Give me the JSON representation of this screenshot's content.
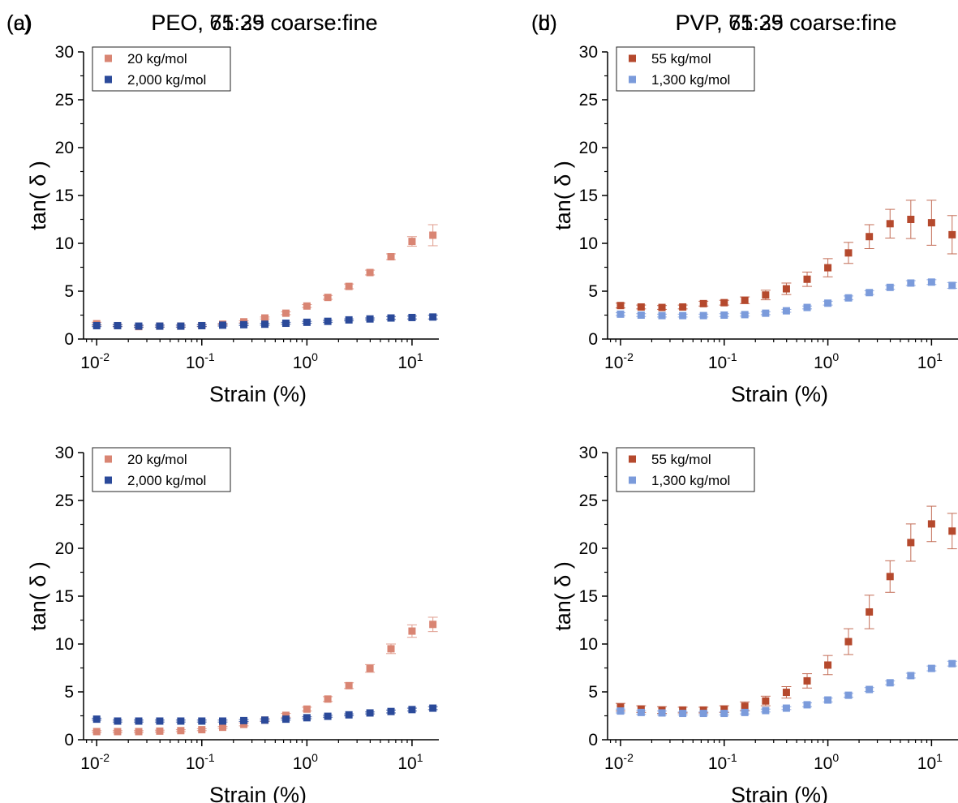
{
  "chart_data": [
    {
      "type": "scatter",
      "panel_label": "(a)",
      "title": "PEO, 71:29 coarse:fine",
      "xlabel": "Strain (%)",
      "ylabel": "tan( δ )",
      "xscale": "log",
      "xlim": [
        0.0075,
        18
      ],
      "ylim": [
        0,
        30
      ],
      "yticks": [
        0,
        5,
        10,
        15,
        20,
        25,
        30
      ],
      "xticks": [
        {
          "value": 0.01,
          "label": "10",
          "exp": "-2"
        },
        {
          "value": 0.1,
          "label": "10",
          "exp": "-1"
        },
        {
          "value": 1,
          "label": "10",
          "exp": "0"
        },
        {
          "value": 10,
          "label": "10",
          "exp": "1"
        }
      ],
      "grid": false,
      "legend_position": "top-left",
      "series": [
        {
          "name": "20 kg/mol",
          "color": "#d98573",
          "x": [
            0.01,
            0.0158,
            0.0251,
            0.0398,
            0.0631,
            0.1,
            0.158,
            0.251,
            0.398,
            0.631,
            1.0,
            1.58,
            2.51,
            3.98,
            6.31,
            10.0,
            15.8
          ],
          "y": [
            1.6,
            1.4,
            1.3,
            1.35,
            1.35,
            1.4,
            1.55,
            1.8,
            2.2,
            2.7,
            3.45,
            4.35,
            5.5,
            6.95,
            8.6,
            10.2,
            10.85
          ],
          "err": [
            0.15,
            0.1,
            0.1,
            0.1,
            0.1,
            0.1,
            0.1,
            0.1,
            0.1,
            0.15,
            0.15,
            0.2,
            0.25,
            0.25,
            0.3,
            0.5,
            1.1
          ]
        },
        {
          "name": "2,000 kg/mol",
          "color": "#2b4a9a",
          "x": [
            0.01,
            0.0158,
            0.0251,
            0.0398,
            0.0631,
            0.1,
            0.158,
            0.251,
            0.398,
            0.631,
            1.0,
            1.58,
            2.51,
            3.98,
            6.31,
            10.0,
            15.8
          ],
          "y": [
            1.4,
            1.4,
            1.35,
            1.35,
            1.35,
            1.4,
            1.45,
            1.5,
            1.55,
            1.65,
            1.75,
            1.85,
            2.0,
            2.1,
            2.2,
            2.25,
            2.3
          ],
          "err": [
            0.1,
            0.1,
            0.1,
            0.1,
            0.1,
            0.1,
            0.1,
            0.1,
            0.1,
            0.1,
            0.1,
            0.1,
            0.1,
            0.1,
            0.15,
            0.15,
            0.2
          ]
        }
      ]
    },
    {
      "type": "scatter",
      "panel_label": "(b)",
      "title": "PVP, 71:29 coarse:fine",
      "xlabel": "Strain (%)",
      "ylabel": "tan( δ )",
      "xscale": "log",
      "xlim": [
        0.0075,
        18
      ],
      "ylim": [
        0,
        30
      ],
      "yticks": [
        0,
        5,
        10,
        15,
        20,
        25,
        30
      ],
      "xticks": [
        {
          "value": 0.01,
          "label": "10",
          "exp": "-2"
        },
        {
          "value": 0.1,
          "label": "10",
          "exp": "-1"
        },
        {
          "value": 1,
          "label": "10",
          "exp": "0"
        },
        {
          "value": 10,
          "label": "10",
          "exp": "1"
        }
      ],
      "grid": false,
      "legend_position": "top-left",
      "series": [
        {
          "name": "55 kg/mol",
          "color": "#b5492d",
          "x": [
            0.01,
            0.0158,
            0.0251,
            0.0398,
            0.0631,
            0.1,
            0.158,
            0.251,
            0.398,
            0.631,
            1.0,
            1.58,
            2.51,
            3.98,
            6.31,
            10.0,
            15.8
          ],
          "y": [
            3.5,
            3.35,
            3.3,
            3.35,
            3.7,
            3.8,
            4.05,
            4.6,
            5.25,
            6.25,
            7.45,
            9.0,
            10.7,
            12.05,
            12.5,
            12.15,
            10.9
          ],
          "err": [
            0.25,
            0.2,
            0.2,
            0.2,
            0.25,
            0.25,
            0.35,
            0.5,
            0.6,
            0.75,
            0.95,
            1.1,
            1.25,
            1.5,
            2.0,
            2.35,
            2.0
          ]
        },
        {
          "name": "1,300 kg/mol",
          "color": "#7b9bdb",
          "x": [
            0.01,
            0.0158,
            0.0251,
            0.0398,
            0.0631,
            0.1,
            0.158,
            0.251,
            0.398,
            0.631,
            1.0,
            1.58,
            2.51,
            3.98,
            6.31,
            10.0,
            15.8
          ],
          "y": [
            2.6,
            2.5,
            2.45,
            2.45,
            2.45,
            2.5,
            2.55,
            2.7,
            2.95,
            3.3,
            3.75,
            4.3,
            4.85,
            5.4,
            5.85,
            5.95,
            5.6
          ],
          "err": [
            0.15,
            0.15,
            0.15,
            0.15,
            0.15,
            0.15,
            0.15,
            0.15,
            0.15,
            0.15,
            0.2,
            0.2,
            0.2,
            0.2,
            0.25,
            0.25,
            0.3
          ]
        }
      ]
    },
    {
      "type": "scatter",
      "panel_label": "(c)",
      "title": "PEO, 65:35 coarse:fine",
      "xlabel": "Strain (%)",
      "ylabel": "tan( δ )",
      "xscale": "log",
      "xlim": [
        0.0075,
        18
      ],
      "ylim": [
        0,
        30
      ],
      "yticks": [
        0,
        5,
        10,
        15,
        20,
        25,
        30
      ],
      "xticks": [
        {
          "value": 0.01,
          "label": "10",
          "exp": "-2"
        },
        {
          "value": 0.1,
          "label": "10",
          "exp": "-1"
        },
        {
          "value": 1,
          "label": "10",
          "exp": "0"
        },
        {
          "value": 10,
          "label": "10",
          "exp": "1"
        }
      ],
      "grid": false,
      "legend_position": "top-left",
      "series": [
        {
          "name": "20 kg/mol",
          "color": "#d98573",
          "x": [
            0.01,
            0.0158,
            0.0251,
            0.0398,
            0.0631,
            0.1,
            0.158,
            0.251,
            0.398,
            0.631,
            1.0,
            1.58,
            2.51,
            3.98,
            6.31,
            10.0,
            15.8
          ],
          "y": [
            0.85,
            0.85,
            0.85,
            0.9,
            0.95,
            1.05,
            1.3,
            1.6,
            2.05,
            2.55,
            3.2,
            4.25,
            5.65,
            7.45,
            9.5,
            11.35,
            12.05
          ],
          "err": [
            0.1,
            0.1,
            0.1,
            0.1,
            0.1,
            0.1,
            0.1,
            0.15,
            0.15,
            0.2,
            0.2,
            0.25,
            0.3,
            0.4,
            0.5,
            0.65,
            0.75
          ]
        },
        {
          "name": "2,000 kg/mol",
          "color": "#2b4a9a",
          "x": [
            0.01,
            0.0158,
            0.0251,
            0.0398,
            0.0631,
            0.1,
            0.158,
            0.251,
            0.398,
            0.631,
            1.0,
            1.58,
            2.51,
            3.98,
            6.31,
            10.0,
            15.8
          ],
          "y": [
            2.15,
            1.95,
            1.95,
            1.95,
            1.95,
            1.95,
            1.95,
            2.0,
            2.05,
            2.15,
            2.3,
            2.45,
            2.6,
            2.8,
            2.95,
            3.15,
            3.3
          ],
          "err": [
            0.1,
            0.1,
            0.1,
            0.1,
            0.1,
            0.1,
            0.1,
            0.1,
            0.1,
            0.1,
            0.1,
            0.1,
            0.1,
            0.1,
            0.15,
            0.15,
            0.15
          ]
        }
      ]
    },
    {
      "type": "scatter",
      "panel_label": "(d)",
      "title": "PVP, 65:35 coarse:fine",
      "xlabel": "Strain (%)",
      "ylabel": "tan( δ )",
      "xscale": "log",
      "xlim": [
        0.0075,
        18
      ],
      "ylim": [
        0,
        30
      ],
      "yticks": [
        0,
        5,
        10,
        15,
        20,
        25,
        30
      ],
      "xticks": [
        {
          "value": 0.01,
          "label": "10",
          "exp": "-2"
        },
        {
          "value": 0.1,
          "label": "10",
          "exp": "-1"
        },
        {
          "value": 1,
          "label": "10",
          "exp": "0"
        },
        {
          "value": 10,
          "label": "10",
          "exp": "1"
        }
      ],
      "grid": false,
      "legend_position": "top-left",
      "series": [
        {
          "name": "55 kg/mol",
          "color": "#b5492d",
          "x": [
            0.01,
            0.0158,
            0.0251,
            0.0398,
            0.0631,
            0.1,
            0.158,
            0.251,
            0.398,
            0.631,
            1.0,
            1.58,
            2.51,
            3.98,
            6.31,
            10.0,
            15.8
          ],
          "y": [
            3.4,
            3.2,
            3.1,
            3.1,
            3.1,
            3.2,
            3.5,
            4.05,
            4.95,
            6.15,
            7.8,
            10.25,
            13.35,
            17.05,
            20.6,
            22.55,
            21.8
          ],
          "err": [
            0.4,
            0.35,
            0.35,
            0.3,
            0.3,
            0.35,
            0.45,
            0.5,
            0.6,
            0.75,
            1.0,
            1.35,
            1.75,
            1.65,
            1.95,
            1.85,
            1.85
          ]
        },
        {
          "name": "1,300 kg/mol",
          "color": "#7b9bdb",
          "x": [
            0.01,
            0.0158,
            0.0251,
            0.0398,
            0.0631,
            0.1,
            0.158,
            0.251,
            0.398,
            0.631,
            1.0,
            1.58,
            2.51,
            3.98,
            6.31,
            10.0,
            15.8
          ],
          "y": [
            3.0,
            2.85,
            2.8,
            2.75,
            2.75,
            2.75,
            2.85,
            3.05,
            3.3,
            3.65,
            4.15,
            4.65,
            5.25,
            5.95,
            6.7,
            7.45,
            7.95
          ],
          "err": [
            0.2,
            0.2,
            0.2,
            0.15,
            0.15,
            0.15,
            0.15,
            0.15,
            0.15,
            0.2,
            0.2,
            0.2,
            0.2,
            0.2,
            0.25,
            0.25,
            0.25
          ]
        }
      ]
    }
  ]
}
